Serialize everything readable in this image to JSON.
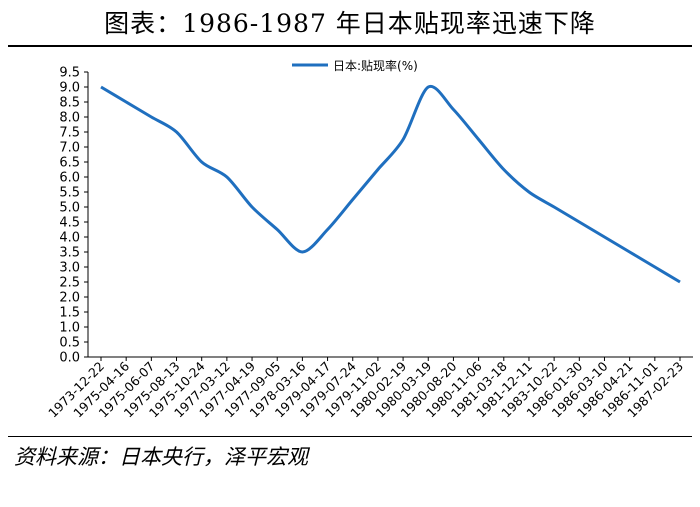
{
  "title": "图表：1986-1987 年日本贴现率迅速下降",
  "source": "资料来源：日本央行，泽平宏观",
  "chart_data": {
    "type": "line",
    "legend": {
      "label": "日本:贴现率(%)",
      "position": "top"
    },
    "categories": [
      "1973-12-22",
      "1975-04-16",
      "1975-06-07",
      "1975-08-13",
      "1975-10-24",
      "1977-03-12",
      "1977-04-19",
      "1977-09-05",
      "1978-03-16",
      "1979-04-17",
      "1979-07-24",
      "1979-11-02",
      "1980-02-19",
      "1980-03-19",
      "1980-08-20",
      "1980-11-06",
      "1981-03-18",
      "1981-12-11",
      "1983-10-22",
      "1986-01-30",
      "1986-03-10",
      "1986-04-21",
      "1986-11-01",
      "1987-02-23"
    ],
    "series": [
      {
        "name": "日本:贴现率(%)",
        "color": "#1f6fbf",
        "values": [
          9.0,
          8.5,
          8.0,
          7.5,
          6.5,
          6.0,
          5.0,
          4.25,
          3.5,
          4.25,
          5.25,
          6.25,
          7.25,
          9.0,
          8.25,
          7.25,
          6.25,
          5.5,
          5.0,
          4.5,
          4.0,
          3.5,
          3.0,
          2.5
        ]
      }
    ],
    "y_ticks": [
      "0.0",
      "0.5",
      "1.0",
      "1.5",
      "2.0",
      "2.5",
      "3.0",
      "3.5",
      "4.0",
      "4.5",
      "5.0",
      "5.5",
      "6.0",
      "6.5",
      "7.0",
      "7.5",
      "8.0",
      "8.5",
      "9.0",
      "9.5"
    ],
    "ylim": [
      0,
      9.5
    ],
    "grid": false
  }
}
